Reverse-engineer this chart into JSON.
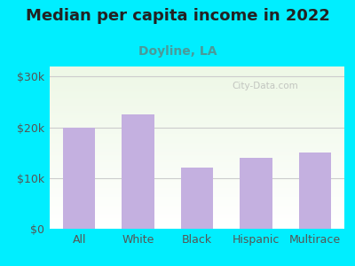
{
  "title": "Median per capita income in 2022",
  "subtitle": "Doyline, LA",
  "categories": [
    "All",
    "White",
    "Black",
    "Hispanic",
    "Multirace"
  ],
  "values": [
    20000,
    22500,
    12000,
    14000,
    15000
  ],
  "bar_color": "#c4b0e0",
  "title_fontsize": 13,
  "subtitle_fontsize": 10,
  "subtitle_color": "#4a9a9a",
  "title_color": "#222222",
  "bg_outer": "#00eeff",
  "ylim": [
    0,
    32000
  ],
  "yticks": [
    0,
    10000,
    20000,
    30000
  ],
  "ytick_labels": [
    "$0",
    "$10k",
    "$20k",
    "$30k"
  ],
  "watermark": "City-Data.com",
  "tick_color": "#555555",
  "axis_label_fontsize": 9,
  "bar_width": 0.55,
  "grid_color": "#cccccc"
}
